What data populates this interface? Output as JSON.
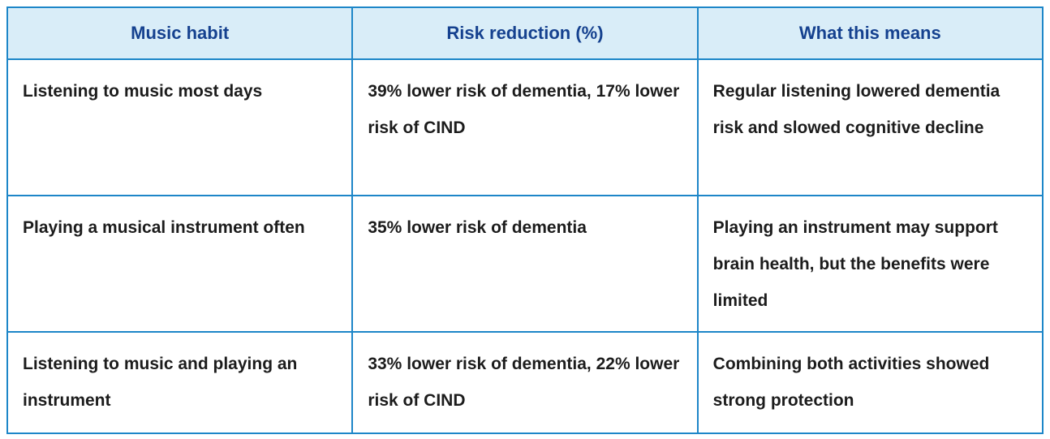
{
  "colors": {
    "bg": "#ffffff",
    "border_color": "#1d86c8",
    "header_bg": "#d9edf8",
    "header_text": "#15418f",
    "body_text": "#1c1c1c"
  },
  "table": {
    "headers": [
      "Music habit",
      "Risk reduction (%)",
      "What this means"
    ],
    "rows": [
      [
        "Listening to music most days",
        "39% lower risk of dementia, 17% lower risk of CIND",
        "Regular listening lowered dementia risk and slowed cognitive decline"
      ],
      [
        "Playing a musical instrument often",
        "35% lower risk of dementia",
        "Playing an instrument may support brain health, but the benefits were limited"
      ],
      [
        "Listening to music and playing an instrument",
        "33% lower risk of dementia, 22% lower risk of CIND",
        "Combining both activities showed strong protection"
      ]
    ]
  },
  "chart_data": {
    "type": "table",
    "title": "",
    "columns": [
      "Music habit",
      "Risk reduction (%)",
      "What this means"
    ],
    "rows": [
      {
        "music_habit": "Listening to music most days",
        "risk_reduction_pct": "39% lower risk of dementia, 17% lower risk of CIND",
        "dementia_risk_reduction_pct": 39,
        "cind_risk_reduction_pct": 17,
        "what_this_means": "Regular listening lowered dementia risk and slowed cognitive decline"
      },
      {
        "music_habit": "Playing a musical instrument often",
        "risk_reduction_pct": "35% lower risk of dementia",
        "dementia_risk_reduction_pct": 35,
        "cind_risk_reduction_pct": null,
        "what_this_means": "Playing an instrument may support brain health, but the benefits were limited"
      },
      {
        "music_habit": "Listening to music and playing an instrument",
        "risk_reduction_pct": "33% lower risk of dementia, 22% lower risk of CIND",
        "dementia_risk_reduction_pct": 33,
        "cind_risk_reduction_pct": 22,
        "what_this_means": "Combining both activities showed strong protection"
      }
    ],
    "layout_hints": {
      "header_background": "#d9edf8",
      "header_text_color": "#15418f",
      "grid": true,
      "column_alignment": [
        "left",
        "left",
        "left"
      ],
      "header_alignment": "center"
    }
  }
}
